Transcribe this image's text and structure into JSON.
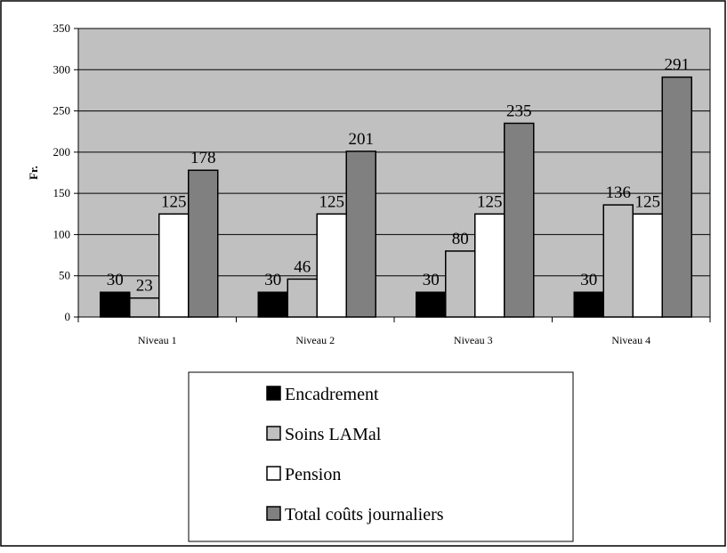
{
  "chart_data": {
    "type": "bar",
    "title": "",
    "xlabel": "",
    "ylabel": "Fr.",
    "ylim": [
      0,
      350
    ],
    "ytick_step": 50,
    "grid": true,
    "legend_position": "bottom",
    "categories": [
      "Niveau 1",
      "Niveau 2",
      "Niveau 3",
      "Niveau 4"
    ],
    "series": [
      {
        "name": "Encadrement",
        "color": "#000000",
        "values": [
          30,
          30,
          30,
          30
        ]
      },
      {
        "name": "Soins LAMal",
        "color": "#c0c0c0",
        "values": [
          23,
          46,
          80,
          136
        ]
      },
      {
        "name": "Pension",
        "color": "#ffffff",
        "values": [
          125,
          125,
          125,
          125
        ]
      },
      {
        "name": "Total coûts journaliers",
        "color": "#808080",
        "values": [
          178,
          201,
          235,
          291
        ]
      }
    ],
    "plot_background": "#c0c0c0"
  }
}
